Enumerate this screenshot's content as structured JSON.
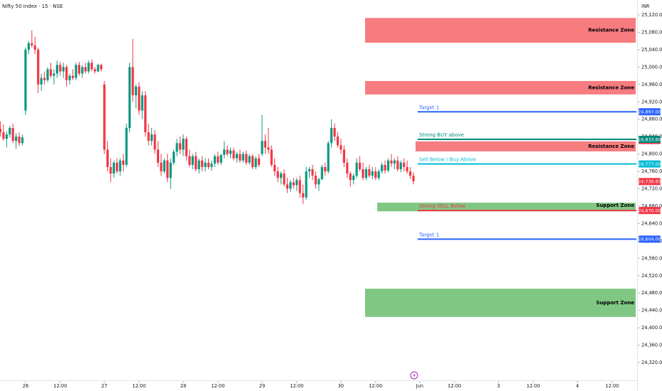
{
  "header": {
    "title": "Nifty 50 Index · 15 · NSE",
    "currency": "INR"
  },
  "chart_data": {
    "type": "candlestick",
    "up_color": "#089981",
    "down_color": "#f23645",
    "xlim": [
      -8.1,
      194.5
    ],
    "ylim": [
      24320,
      25120
    ],
    "xticks": [
      {
        "value": 0,
        "label": "26"
      },
      {
        "value": 11,
        "label": "12:00"
      },
      {
        "value": 25,
        "label": "27"
      },
      {
        "value": 36,
        "label": "12:00"
      },
      {
        "value": 50,
        "label": "28"
      },
      {
        "value": 61,
        "label": "12:00"
      },
      {
        "value": 75,
        "label": "29"
      },
      {
        "value": 86,
        "label": "12:00"
      },
      {
        "value": 100,
        "label": "30"
      },
      {
        "value": 111,
        "label": "12:00"
      },
      {
        "value": 125,
        "label": "Jun"
      },
      {
        "value": 136,
        "label": "12:00"
      },
      {
        "value": 150,
        "label": "3"
      },
      {
        "value": 161,
        "label": "12:00"
      },
      {
        "value": 175,
        "label": "4"
      },
      {
        "value": 186,
        "label": "12:00"
      }
    ],
    "yticks": [
      {
        "value": 24320,
        "label": "24,320.00"
      },
      {
        "value": 24360,
        "label": "24,360.00"
      },
      {
        "value": 24400,
        "label": "24,400.00"
      },
      {
        "value": 24440,
        "label": "24,440.00"
      },
      {
        "value": 24480,
        "label": "24,480.00"
      },
      {
        "value": 24520,
        "label": "24,520.00"
      },
      {
        "value": 24560,
        "label": "24,560.00"
      },
      {
        "value": 24600,
        "label": "24,600.00"
      },
      {
        "value": 24640,
        "label": "24,640.00"
      },
      {
        "value": 24680,
        "label": "24,680.00"
      },
      {
        "value": 24720,
        "label": "24,720.00"
      },
      {
        "value": 24760,
        "label": "24,760.00"
      },
      {
        "value": 24800,
        "label": "24,800.00"
      },
      {
        "value": 24840,
        "label": "24,840.00"
      },
      {
        "value": 24880,
        "label": "24,880.00"
      },
      {
        "value": 24920,
        "label": "24,920.00"
      },
      {
        "value": 24960,
        "label": "24,960.00"
      },
      {
        "value": 25000,
        "label": "25,000.00"
      },
      {
        "value": 25040,
        "label": "25,040.00"
      },
      {
        "value": 25080,
        "label": "25,080.00"
      },
      {
        "value": 25120,
        "label": "25,120.00"
      }
    ],
    "candles": [
      [
        -8,
        24858,
        24875,
        24840,
        24850
      ],
      [
        -7,
        24850,
        24868,
        24830,
        24835
      ],
      [
        -6,
        24835,
        24852,
        24815,
        24845
      ],
      [
        -5,
        24845,
        24865,
        24838,
        24860
      ],
      [
        -4,
        24860,
        24870,
        24825,
        24830
      ],
      [
        -3,
        24830,
        24848,
        24812,
        24840
      ],
      [
        -2,
        24840,
        24850,
        24818,
        24825
      ],
      [
        -1,
        24825,
        24845,
        24820,
        24838
      ],
      [
        0,
        24900,
        25045,
        24890,
        25040
      ],
      [
        1,
        25040,
        25060,
        25030,
        25055
      ],
      [
        2,
        25055,
        25085,
        25045,
        25050
      ],
      [
        3,
        25050,
        25070,
        25030,
        25040
      ],
      [
        4,
        25040,
        25045,
        24940,
        24960
      ],
      [
        5,
        24960,
        24985,
        24945,
        24975
      ],
      [
        6,
        24975,
        24990,
        24960,
        24970
      ],
      [
        7,
        24970,
        25000,
        24965,
        24995
      ],
      [
        8,
        24995,
        25010,
        24975,
        24980
      ],
      [
        9,
        24980,
        24995,
        24960,
        24985
      ],
      [
        10,
        24985,
        25015,
        24975,
        25005
      ],
      [
        11,
        25005,
        25012,
        24980,
        24990
      ],
      [
        12,
        24990,
        25010,
        24975,
        25000
      ],
      [
        13,
        25000,
        25005,
        24955,
        24970
      ],
      [
        14,
        24970,
        24985,
        24960,
        24980
      ],
      [
        15,
        24980,
        24995,
        24970,
        24975
      ],
      [
        16,
        24975,
        25010,
        24970,
        25005
      ],
      [
        17,
        25005,
        25012,
        24980,
        24985
      ],
      [
        18,
        24985,
        25005,
        24975,
        25000
      ],
      [
        19,
        25000,
        25010,
        24985,
        24990
      ],
      [
        20,
        24990,
        25015,
        24985,
        25010
      ],
      [
        21,
        25010,
        25018,
        24990,
        24995
      ],
      [
        22,
        24995,
        25000,
        24985,
        24990
      ],
      [
        23,
        24990,
        25008,
        24988,
        25005
      ],
      [
        24,
        25005,
        25008,
        24990,
        24995
      ],
      [
        25,
        24960,
        24968,
        24800,
        24810
      ],
      [
        26,
        24810,
        24830,
        24760,
        24770
      ],
      [
        27,
        24770,
        24790,
        24735,
        24755
      ],
      [
        28,
        24755,
        24785,
        24745,
        24780
      ],
      [
        29,
        24780,
        24790,
        24755,
        24760
      ],
      [
        30,
        24760,
        24790,
        24750,
        24785
      ],
      [
        31,
        24785,
        24800,
        24760,
        24775
      ],
      [
        32,
        24775,
        24870,
        24770,
        24860
      ],
      [
        33,
        24860,
        25010,
        24850,
        25000
      ],
      [
        34,
        25000,
        25065,
        24920,
        24935
      ],
      [
        35,
        24935,
        24960,
        24905,
        24955
      ],
      [
        36,
        24955,
        24965,
        24890,
        24900
      ],
      [
        37,
        24900,
        24945,
        24880,
        24935
      ],
      [
        38,
        24935,
        24945,
        24840,
        24850
      ],
      [
        39,
        24850,
        24870,
        24820,
        24830
      ],
      [
        40,
        24830,
        24860,
        24820,
        24845
      ],
      [
        41,
        24845,
        24855,
        24800,
        24810
      ],
      [
        42,
        24810,
        24830,
        24770,
        24780
      ],
      [
        43,
        24780,
        24800,
        24750,
        24760
      ],
      [
        44,
        24760,
        24790,
        24755,
        24785
      ],
      [
        45,
        24785,
        24800,
        24735,
        24745
      ],
      [
        46,
        24745,
        24790,
        24720,
        24780
      ],
      [
        47,
        24780,
        24810,
        24775,
        24805
      ],
      [
        48,
        24805,
        24835,
        24795,
        24825
      ],
      [
        49,
        24825,
        24840,
        24800,
        24810
      ],
      [
        50,
        24810,
        24845,
        24795,
        24835
      ],
      [
        51,
        24835,
        24840,
        24785,
        24795
      ],
      [
        52,
        24795,
        24810,
        24770,
        24775
      ],
      [
        53,
        24775,
        24800,
        24765,
        24795
      ],
      [
        54,
        24795,
        24805,
        24760,
        24765
      ],
      [
        55,
        24765,
        24790,
        24755,
        24785
      ],
      [
        56,
        24785,
        24795,
        24760,
        24770
      ],
      [
        57,
        24770,
        24790,
        24760,
        24780
      ],
      [
        58,
        24780,
        24790,
        24765,
        24770
      ],
      [
        59,
        24770,
        24785,
        24762,
        24778
      ],
      [
        60,
        24778,
        24800,
        24770,
        24795
      ],
      [
        61,
        24795,
        24805,
        24775,
        24780
      ],
      [
        62,
        24780,
        24800,
        24775,
        24798
      ],
      [
        63,
        24798,
        24830,
        24790,
        24810
      ],
      [
        64,
        24810,
        24820,
        24795,
        24800
      ],
      [
        65,
        24800,
        24815,
        24790,
        24808
      ],
      [
        66,
        24808,
        24815,
        24785,
        24790
      ],
      [
        67,
        24790,
        24805,
        24780,
        24800
      ],
      [
        68,
        24800,
        24810,
        24780,
        24785
      ],
      [
        69,
        24785,
        24805,
        24780,
        24800
      ],
      [
        70,
        24800,
        24808,
        24775,
        24780
      ],
      [
        71,
        24780,
        24800,
        24775,
        24795
      ],
      [
        72,
        24795,
        24800,
        24765,
        24770
      ],
      [
        73,
        24770,
        24795,
        24765,
        24790
      ],
      [
        74,
        24790,
        24800,
        24770,
        24775
      ],
      [
        75,
        24800,
        24890,
        24795,
        24830
      ],
      [
        76,
        24830,
        24845,
        24800,
        24815
      ],
      [
        77,
        24815,
        24860,
        24800,
        24810
      ],
      [
        78,
        24810,
        24820,
        24770,
        24775
      ],
      [
        79,
        24775,
        24790,
        24750,
        24760
      ],
      [
        80,
        24760,
        24770,
        24735,
        24745
      ],
      [
        81,
        24745,
        24760,
        24730,
        24755
      ],
      [
        82,
        24755,
        24765,
        24725,
        24730
      ],
      [
        83,
        24730,
        24745,
        24710,
        24720
      ],
      [
        84,
        24720,
        24740,
        24712,
        24735
      ],
      [
        85,
        24735,
        24745,
        24720,
        24728
      ],
      [
        86,
        24728,
        24745,
        24715,
        24740
      ],
      [
        87,
        24740,
        24750,
        24700,
        24710
      ],
      [
        88,
        24710,
        24730,
        24685,
        24700
      ],
      [
        89,
        24700,
        24770,
        24695,
        24760
      ],
      [
        90,
        24760,
        24770,
        24745,
        24765
      ],
      [
        91,
        24765,
        24775,
        24740,
        24750
      ],
      [
        92,
        24750,
        24760,
        24720,
        24730
      ],
      [
        93,
        24730,
        24745,
        24715,
        24742
      ],
      [
        94,
        24742,
        24775,
        24740,
        24770
      ],
      [
        95,
        24770,
        24780,
        24750,
        24760
      ],
      [
        96,
        24760,
        24830,
        24755,
        24825
      ],
      [
        97,
        24825,
        24880,
        24815,
        24860
      ],
      [
        98,
        24860,
        24870,
        24830,
        24840
      ],
      [
        99,
        24840,
        24850,
        24815,
        24820
      ],
      [
        100,
        24820,
        24835,
        24800,
        24810
      ],
      [
        101,
        24810,
        24820,
        24770,
        24780
      ],
      [
        102,
        24780,
        24790,
        24745,
        24755
      ],
      [
        103,
        24755,
        24760,
        24725,
        24740
      ],
      [
        104,
        24740,
        24755,
        24730,
        24750
      ],
      [
        105,
        24750,
        24790,
        24745,
        24780
      ],
      [
        106,
        24780,
        24795,
        24760,
        24765
      ],
      [
        107,
        24765,
        24780,
        24740,
        24745
      ],
      [
        108,
        24745,
        24770,
        24740,
        24765
      ],
      [
        109,
        24765,
        24775,
        24745,
        24750
      ],
      [
        110,
        24750,
        24770,
        24742,
        24760
      ],
      [
        111,
        24760,
        24770,
        24740,
        24745
      ],
      [
        112,
        24745,
        24765,
        24740,
        24760
      ],
      [
        113,
        24760,
        24780,
        24755,
        24775
      ],
      [
        114,
        24775,
        24785,
        24755,
        24762
      ],
      [
        115,
        24762,
        24790,
        24758,
        24785
      ],
      [
        116,
        24785,
        24800,
        24770,
        24778
      ],
      [
        117,
        24778,
        24790,
        24765,
        24785
      ],
      [
        118,
        24785,
        24795,
        24760,
        24765
      ],
      [
        119,
        24765,
        24785,
        24758,
        24780
      ],
      [
        120,
        24780,
        24790,
        24760,
        24770
      ],
      [
        121,
        24770,
        24785,
        24755,
        24760
      ],
      [
        122,
        24760,
        24770,
        24742,
        24750
      ],
      [
        123,
        24750,
        24758,
        24730,
        24737
      ]
    ],
    "zones": [
      {
        "label": "Resistance Zone",
        "low": 25056,
        "high": 25113,
        "color": "#f77c80"
      },
      {
        "label": "Resistance Zone",
        "low": 24937,
        "high": 24968,
        "color": "#f77c80"
      },
      {
        "label": "Resistance Zone",
        "low": 24806,
        "high": 24829,
        "color": "#f77c80",
        "tag": {
          "value": 24831,
          "label": "24,831.00",
          "color": "#f23645"
        }
      },
      {
        "label": "Support Zone",
        "low": 24668,
        "high": 24688,
        "color": "#81c784"
      },
      {
        "label": "Support Zone",
        "low": 24425,
        "high": 24490,
        "color": "#81c784"
      }
    ],
    "lines": [
      {
        "label": "Target 1",
        "value": 24897,
        "value_label": "24,897.00",
        "color": "#2962ff"
      },
      {
        "label": "Strong BUY above",
        "value": 24833.6,
        "value_label": "24,833.60",
        "color": "#00897b"
      },
      {
        "label": "Sell Below / Buy Above",
        "value": 24777,
        "value_label": "24,777.00",
        "color": "#00bcd4"
      },
      {
        "label": "Strong SELL Below",
        "value": 24670,
        "value_label": "24,670.00",
        "color": "#f23645"
      },
      {
        "label": "Target 1",
        "value": 24604,
        "value_label": "24,604.00",
        "color": "#2962ff"
      }
    ],
    "last_price": {
      "value": 24736.65,
      "label": "24,736.65",
      "color": "#f23645"
    }
  }
}
